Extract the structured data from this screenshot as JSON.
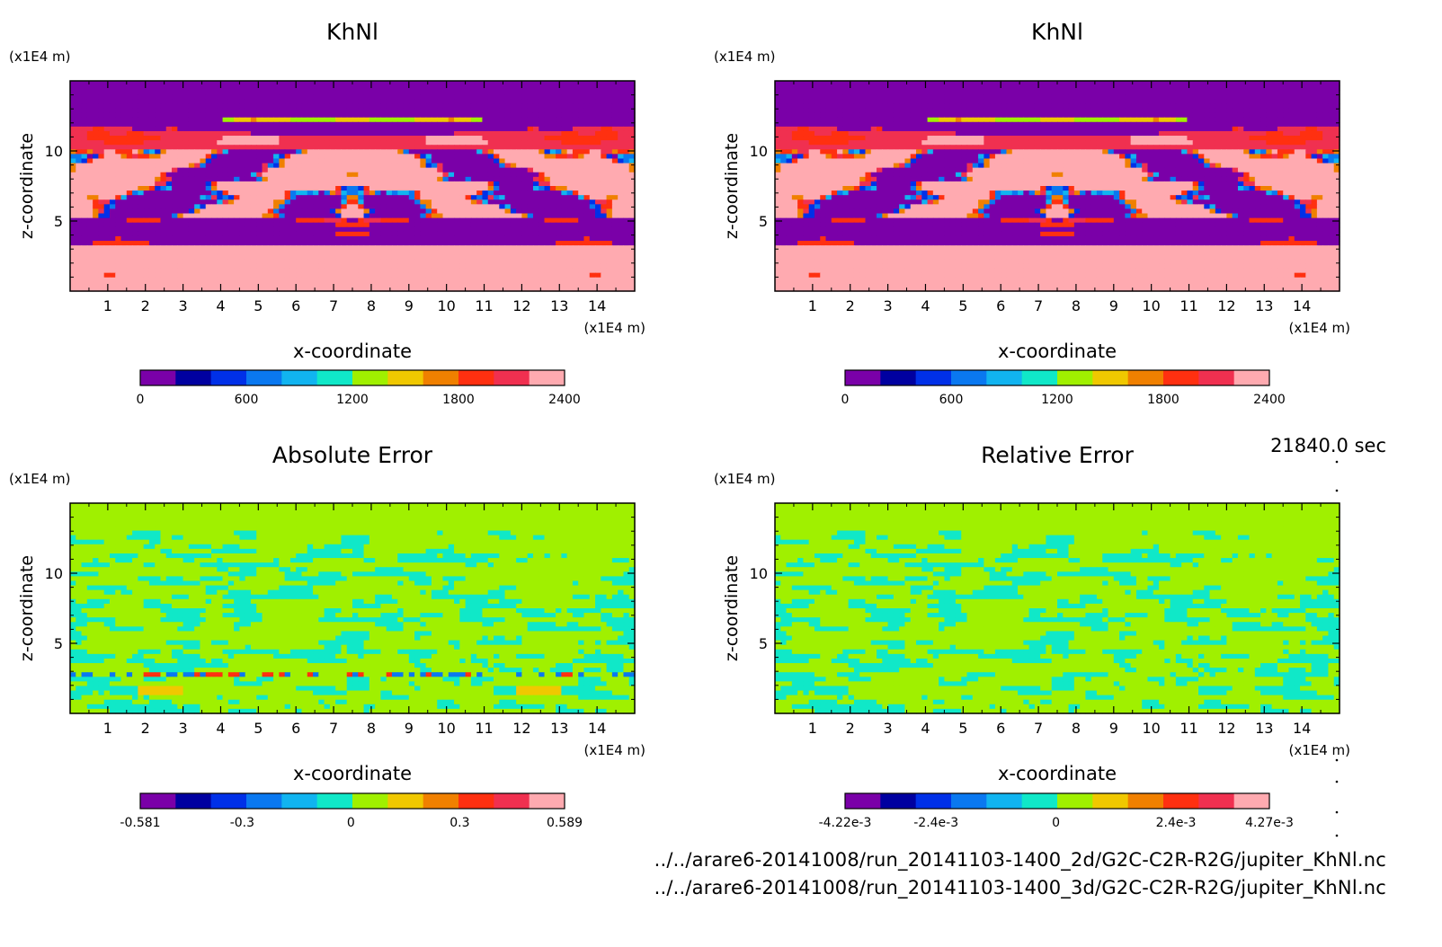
{
  "time_label": "21840.0 sec",
  "files": [
    "../../arare6-20141008/run_20141103-1400_2d/G2C-C2R-R2G/jupiter_KhNl.nc",
    "../../arare6-20141008/run_20141103-1400_3d/G2C-C2R-R2G/jupiter_KhNl.nc"
  ],
  "colors": {
    "palette": [
      "#7a00a8",
      "#0000a0",
      "#0030e8",
      "#0a78f0",
      "#11b4f0",
      "#10e8c8",
      "#a0f000",
      "#f0c800",
      "#f08000",
      "#ff3010",
      "#f03050",
      "#ffaab0"
    ]
  },
  "chart_data": [
    {
      "type": "heatmap",
      "title": "KhNl",
      "xlabel": "x-coordinate",
      "ylabel": "z-coordinate",
      "x_unit": "(x1E4 m)",
      "z_unit": "(x1E4 m)",
      "x_ticks": [
        "1",
        "2",
        "3",
        "4",
        "5",
        "6",
        "7",
        "8",
        "9",
        "10",
        "11",
        "12",
        "13",
        "14"
      ],
      "z_ticks": [
        "5",
        "10"
      ],
      "xlim": [
        0,
        15
      ],
      "zlim": [
        0,
        15
      ],
      "colorbar_ticks": [
        "0",
        "600",
        "1200",
        "1800",
        "2400"
      ],
      "colorbar_range": [
        0,
        2400
      ],
      "field": "khnl"
    },
    {
      "type": "heatmap",
      "title": "KhNl",
      "xlabel": "x-coordinate",
      "ylabel": "z-coordinate",
      "x_unit": "(x1E4 m)",
      "z_unit": "(x1E4 m)",
      "x_ticks": [
        "1",
        "2",
        "3",
        "4",
        "5",
        "6",
        "7",
        "8",
        "9",
        "10",
        "11",
        "12",
        "13",
        "14"
      ],
      "z_ticks": [
        "5",
        "10"
      ],
      "xlim": [
        0,
        15
      ],
      "zlim": [
        0,
        15
      ],
      "colorbar_ticks": [
        "0",
        "600",
        "1200",
        "1800",
        "2400"
      ],
      "colorbar_range": [
        0,
        2400
      ],
      "field": "khnl"
    },
    {
      "type": "heatmap",
      "title": "Absolute Error",
      "xlabel": "x-coordinate",
      "ylabel": "z-coordinate",
      "x_unit": "(x1E4 m)",
      "z_unit": "(x1E4 m)",
      "x_ticks": [
        "1",
        "2",
        "3",
        "4",
        "5",
        "6",
        "7",
        "8",
        "9",
        "10",
        "11",
        "12",
        "13",
        "14"
      ],
      "z_ticks": [
        "5",
        "10"
      ],
      "xlim": [
        0,
        15
      ],
      "zlim": [
        0,
        15
      ],
      "colorbar_ticks": [
        "-0.581",
        "-0.3",
        "0",
        "0.3",
        "0.589"
      ],
      "colorbar_range": [
        -0.581,
        0.589
      ],
      "field": "abs"
    },
    {
      "type": "heatmap",
      "title": "Relative Error",
      "xlabel": "x-coordinate",
      "ylabel": "z-coordinate",
      "x_unit": "(x1E4 m)",
      "z_unit": "(x1E4 m)",
      "x_ticks": [
        "1",
        "2",
        "3",
        "4",
        "5",
        "6",
        "7",
        "8",
        "9",
        "10",
        "11",
        "12",
        "13",
        "14"
      ],
      "z_ticks": [
        "5",
        "10"
      ],
      "xlim": [
        0,
        15
      ],
      "zlim": [
        0,
        15
      ],
      "colorbar_ticks": [
        "-4.22e-3",
        "-2.4e-3",
        "0",
        "2.4e-3",
        "4.27e-3"
      ],
      "colorbar_range": [
        -0.00422,
        0.00427
      ],
      "field": "rel"
    }
  ]
}
